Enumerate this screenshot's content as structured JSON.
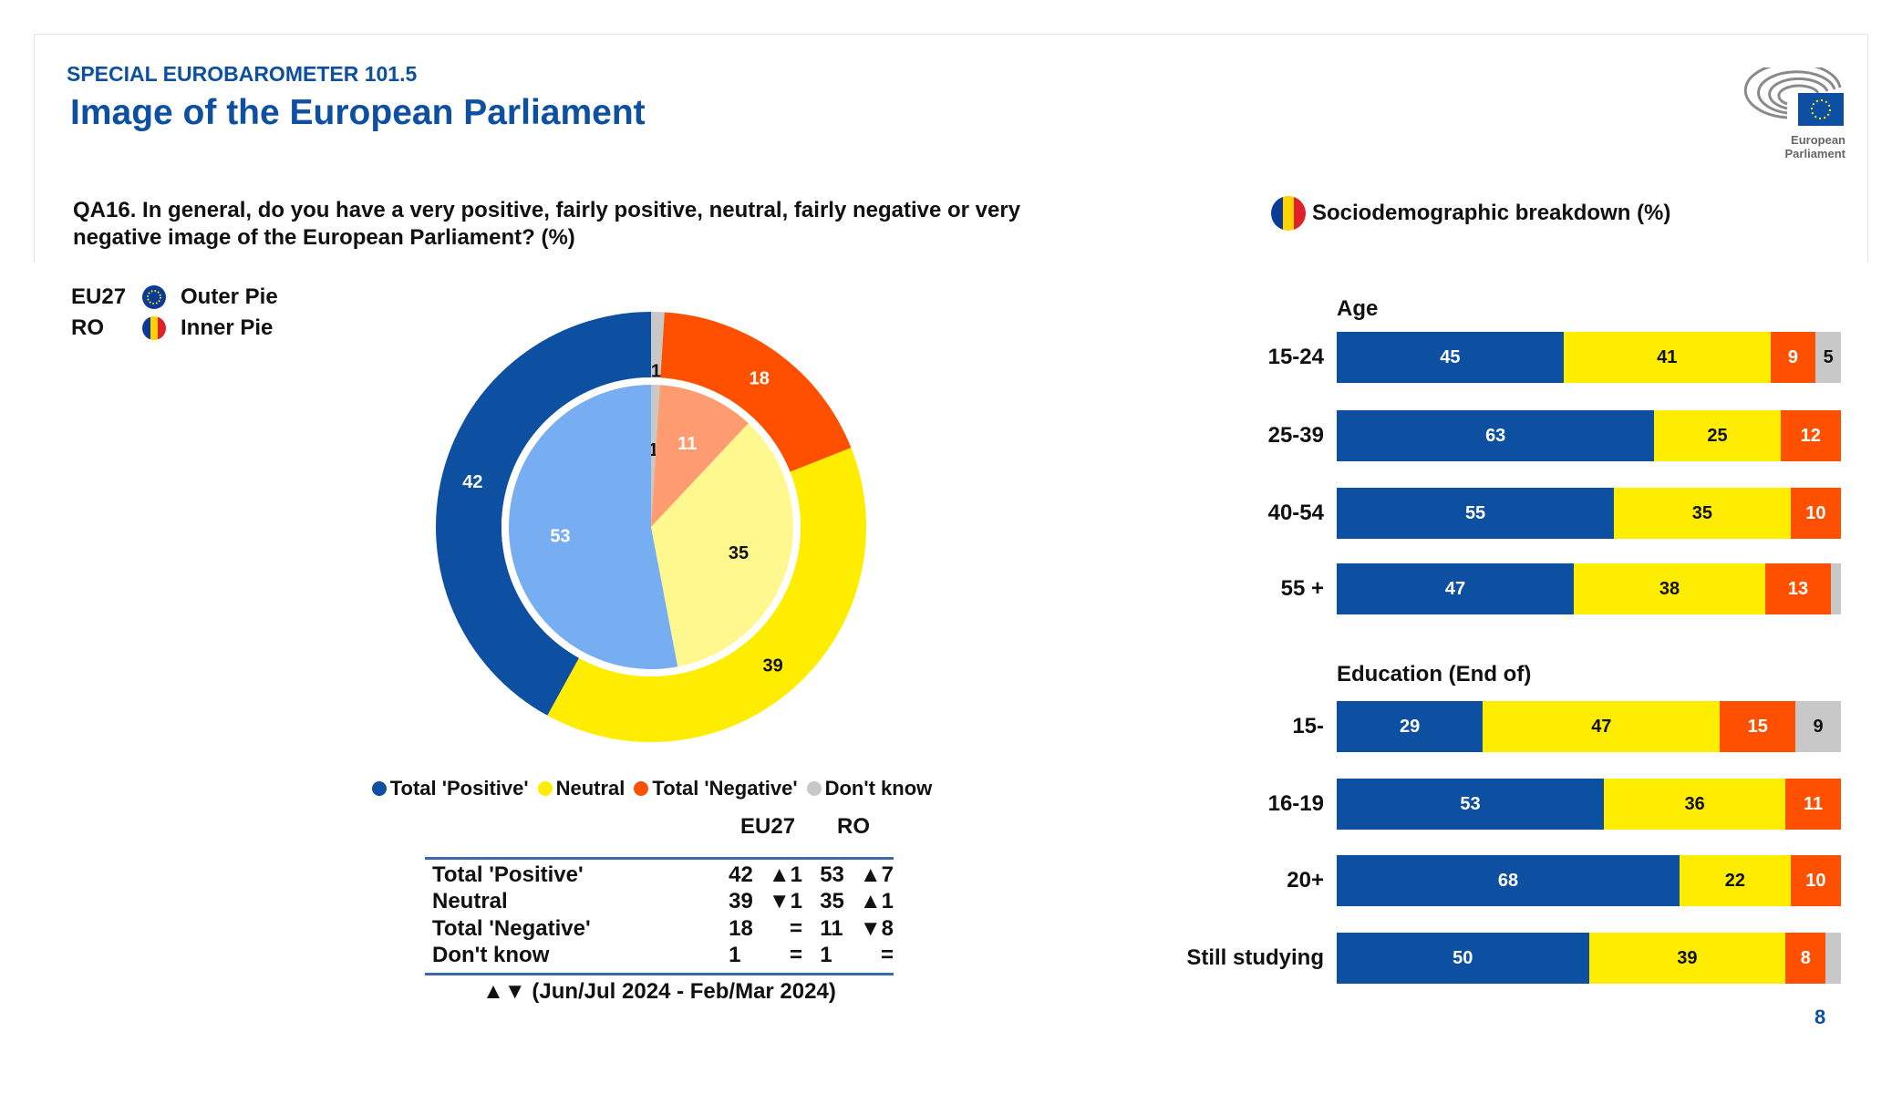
{
  "header": {
    "subtitle": "SPECIAL EUROBAROMETER 101.5",
    "title": "Image of the European Parliament",
    "logo_text": "European Parliament"
  },
  "question": "QA16. In general, do you have a very positive, fairly positive, neutral, fairly negative or very negative image of the European Parliament? (%)",
  "pie_legend": [
    {
      "code": "EU27",
      "label": "Outer Pie"
    },
    {
      "code": "RO",
      "label": "Inner Pie"
    }
  ],
  "colors": {
    "positive": "#0d4fa0",
    "neutral": "#ffed00",
    "negative": "#ff5000",
    "dontknow": "#c8c8c8",
    "positive_light": "#77aef2",
    "neutral_light": "#fff88f",
    "negative_light": "#ff9b70",
    "dontknow_light": "#c8c8c8"
  },
  "chart_data": [
    {
      "type": "pie",
      "name": "EU27 (outer)",
      "categories": [
        "Don't know",
        "Total 'Negative'",
        "Neutral",
        "Total 'Positive'"
      ],
      "values": [
        1,
        18,
        39,
        42
      ]
    },
    {
      "type": "pie",
      "name": "RO (inner)",
      "categories": [
        "Don't know",
        "Total 'Negative'",
        "Neutral",
        "Total 'Positive'"
      ],
      "values": [
        1,
        11,
        35,
        53
      ]
    },
    {
      "type": "bar",
      "orientation": "horizontal-stacked",
      "title": "Sociodemographic breakdown (%)",
      "series_names": [
        "Total 'Positive'",
        "Neutral",
        "Total 'Negative'",
        "Don't know"
      ],
      "groups": [
        {
          "heading": "Age",
          "rows": [
            {
              "label": "15-24",
              "values": [
                45,
                41,
                9,
                5
              ]
            },
            {
              "label": "25-39",
              "values": [
                63,
                25,
                12,
                0
              ]
            },
            {
              "label": "40-54",
              "values": [
                55,
                35,
                10,
                0
              ]
            },
            {
              "label": "55 +",
              "values": [
                47,
                38,
                13,
                2
              ]
            }
          ]
        },
        {
          "heading": "Education (End of)",
          "rows": [
            {
              "label": "15-",
              "values": [
                29,
                47,
                15,
                9
              ]
            },
            {
              "label": "16-19",
              "values": [
                53,
                36,
                11,
                0
              ]
            },
            {
              "label": "20+",
              "values": [
                68,
                22,
                10,
                0
              ]
            },
            {
              "label": "Still studying",
              "values": [
                50,
                39,
                8,
                3
              ]
            }
          ]
        }
      ]
    }
  ],
  "legend": [
    "Total 'Positive'",
    "Neutral",
    "Total 'Negative'",
    "Don't know"
  ],
  "table": {
    "headers": [
      "EU27",
      "RO"
    ],
    "rows": [
      {
        "label": "Total 'Positive'",
        "eu": "42",
        "eu_chg": "▲1",
        "ro": "53",
        "ro_chg": "▲7"
      },
      {
        "label": "Neutral",
        "eu": "39",
        "eu_chg": "▼1",
        "ro": "35",
        "ro_chg": "▲1"
      },
      {
        "label": "Total 'Negative'",
        "eu": "18",
        "eu_chg": "=",
        "ro": "11",
        "ro_chg": "▼8"
      },
      {
        "label": "Don't know",
        "eu": "1",
        "eu_chg": "=",
        "ro": "1",
        "ro_chg": "="
      }
    ],
    "footnote": "▲▼ (Jun/Jul 2024 - Feb/Mar 2024)"
  },
  "socio_title": "Sociodemographic breakdown (%)",
  "page_number": "8"
}
